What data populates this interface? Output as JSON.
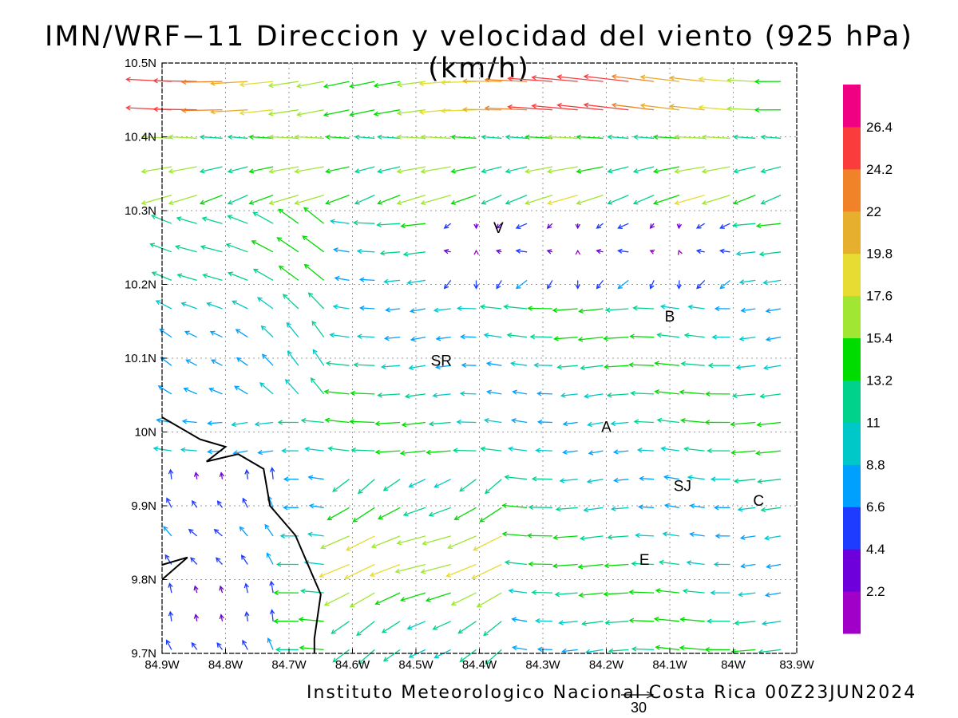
{
  "title": "IMN/WRF−11 Direccion y velocidad del viento (925 hPa)(km/h)",
  "footer": "Instituto Meteorologico Nacional Costa Rica 00Z23JUN2024",
  "reference_vector": {
    "label": "30",
    "speed_kmh": 30
  },
  "map": {
    "lon_range": [
      -84.9,
      -83.9
    ],
    "lat_range": [
      9.7,
      10.5
    ],
    "grid": true,
    "x_ticks": [
      {
        "value": -84.9,
        "label": "84.9W"
      },
      {
        "value": -84.8,
        "label": "84.8W"
      },
      {
        "value": -84.7,
        "label": "84.7W"
      },
      {
        "value": -84.6,
        "label": "84.6W"
      },
      {
        "value": -84.5,
        "label": "84.5W"
      },
      {
        "value": -84.4,
        "label": "84.4W"
      },
      {
        "value": -84.3,
        "label": "84.3W"
      },
      {
        "value": -84.2,
        "label": "84.2W"
      },
      {
        "value": -84.1,
        "label": "84.1W"
      },
      {
        "value": -84.0,
        "label": "84W"
      },
      {
        "value": -83.9,
        "label": "83.9W"
      }
    ],
    "y_ticks": [
      {
        "value": 9.7,
        "label": "9.7N"
      },
      {
        "value": 9.8,
        "label": "9.8N"
      },
      {
        "value": 9.9,
        "label": "9.9N"
      },
      {
        "value": 10.0,
        "label": "10N"
      },
      {
        "value": 10.1,
        "label": "10.1N"
      },
      {
        "value": 10.2,
        "label": "10.2N"
      },
      {
        "value": 10.3,
        "label": "10.3N"
      },
      {
        "value": 10.4,
        "label": "10.4N"
      },
      {
        "value": 10.5,
        "label": "10.5N"
      }
    ],
    "places": [
      {
        "label": "V",
        "lon": -84.37,
        "lat": 10.27
      },
      {
        "label": "B",
        "lon": -84.1,
        "lat": 10.15
      },
      {
        "label": "SR",
        "lon": -84.46,
        "lat": 10.09
      },
      {
        "label": "A",
        "lon": -84.2,
        "lat": 10.0
      },
      {
        "label": "SJ",
        "lon": -84.08,
        "lat": 9.92
      },
      {
        "label": "C",
        "lon": -83.96,
        "lat": 9.9
      },
      {
        "label": "E",
        "lon": -84.14,
        "lat": 9.82
      }
    ],
    "coastline": [
      [
        -84.9,
        10.02
      ],
      [
        -84.84,
        9.99
      ],
      [
        -84.8,
        9.98
      ],
      [
        -84.83,
        9.96
      ],
      [
        -84.78,
        9.97
      ],
      [
        -84.74,
        9.95
      ],
      [
        -84.73,
        9.9
      ],
      [
        -84.69,
        9.86
      ],
      [
        -84.66,
        9.8
      ],
      [
        -84.65,
        9.78
      ],
      [
        -84.66,
        9.72
      ],
      [
        -84.66,
        9.7
      ]
    ],
    "coastline2": [
      [
        -84.9,
        9.82
      ],
      [
        -84.86,
        9.83
      ],
      [
        -84.9,
        9.8
      ]
    ]
  },
  "colorbar": {
    "ticks": [
      "2.2",
      "4.4",
      "6.6",
      "8.8",
      "11",
      "13.2",
      "15.4",
      "17.6",
      "19.8",
      "22",
      "24.2",
      "26.4"
    ],
    "colors": [
      "#a000c8",
      "#6e00dc",
      "#1e3cff",
      "#00a0ff",
      "#00c8c8",
      "#00d28c",
      "#00dc00",
      "#a0e632",
      "#e6dc32",
      "#e6af2d",
      "#f08228",
      "#fa3c3c",
      "#f00082"
    ]
  },
  "chart_data": {
    "type": "wind-vector-map",
    "title": "IMN/WRF−11 Direccion y velocidad del viento (925 hPa)(km/h)",
    "units": "km/h",
    "level": "925 hPa",
    "valid_time": "00Z23JUN2024",
    "x_range": [
      -84.9,
      -83.9
    ],
    "y_range": [
      9.7,
      10.5
    ],
    "grid": "on",
    "legend": "right colorbar",
    "vector_field": {
      "grid_spacing_deg": 0.04,
      "regions": [
        {
          "area": "north band (10.4N-10.5N)",
          "direction": "from east/northeast",
          "speed_kmh": [
            17,
            27
          ]
        },
        {
          "area": "northwest (84.9W-84.6W, 10.1N-10.3N)",
          "direction": "from southeast",
          "speed_kmh": [
            8,
            16
          ]
        },
        {
          "area": "central valley (84.7W-84.0W, 9.9N-10.1N)",
          "direction": "from east",
          "speed_kmh": [
            8,
            15
          ]
        },
        {
          "area": "south (84.6W-84.4W, 9.7N-9.95N)",
          "direction": "from northeast",
          "speed_kmh": [
            13,
            22
          ]
        },
        {
          "area": "southwest coast (84.9W-84.7W, 9.7N-9.9N)",
          "direction": "from south/southeast",
          "speed_kmh": [
            4,
            9
          ]
        },
        {
          "area": "near V and B (84.4W-84.0W, 10.2N-10.3N)",
          "direction": "variable, weak",
          "speed_kmh": [
            1,
            6
          ]
        }
      ]
    }
  }
}
